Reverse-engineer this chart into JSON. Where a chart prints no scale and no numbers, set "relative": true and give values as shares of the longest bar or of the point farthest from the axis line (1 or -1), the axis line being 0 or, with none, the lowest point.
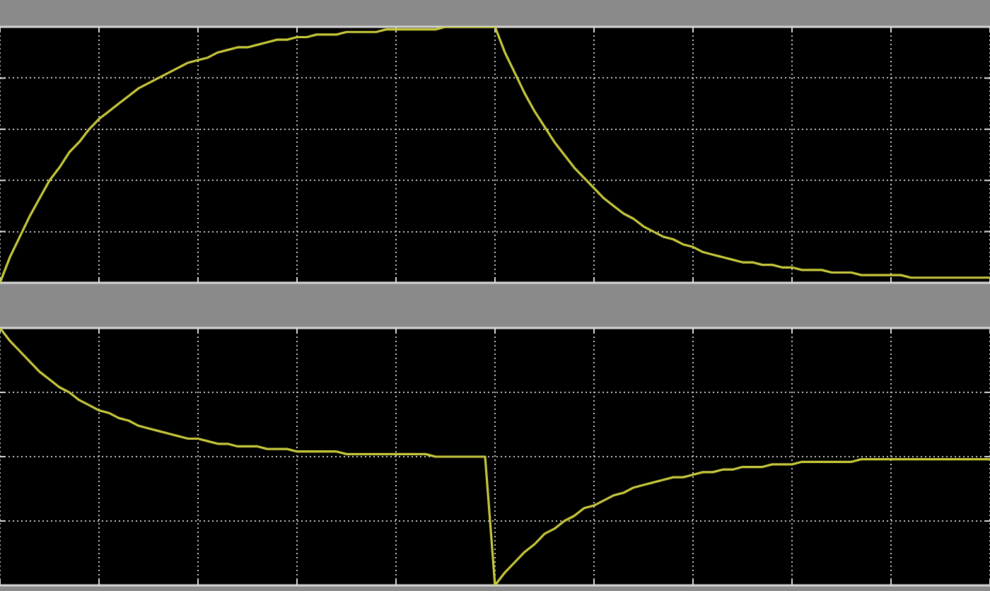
{
  "chart_data": [
    {
      "type": "line",
      "relative": true,
      "tick_labels": false,
      "grid": true,
      "color": "#c8c83c",
      "categories": [
        null,
        null,
        null,
        null,
        null,
        null,
        null,
        null,
        null,
        null,
        null,
        null,
        null,
        null,
        null,
        null,
        null,
        null,
        null,
        null,
        null,
        null,
        null,
        null,
        null,
        null,
        null,
        null,
        null,
        null,
        null,
        null,
        null,
        null,
        null,
        null,
        null,
        null,
        null,
        null,
        null,
        null,
        null,
        null,
        null,
        null,
        null,
        null,
        null,
        null,
        null,
        null,
        null,
        null,
        null,
        null,
        null,
        null,
        null,
        null,
        null,
        null,
        null,
        null,
        null,
        null,
        null,
        null,
        null,
        null,
        null,
        null,
        null,
        null,
        null,
        null,
        null,
        null,
        null,
        null,
        null,
        null,
        null,
        null,
        null,
        null,
        null,
        null,
        null,
        null,
        null,
        null,
        null,
        null,
        null,
        null,
        null,
        null,
        null,
        null,
        null
      ],
      "values": [
        0,
        0.1,
        0.18,
        0.26,
        0.33,
        0.4,
        0.45,
        0.51,
        0.55,
        0.6,
        0.64,
        0.67,
        0.7,
        0.73,
        0.76,
        0.78,
        0.8,
        0.82,
        0.84,
        0.86,
        0.87,
        0.88,
        0.9,
        0.91,
        0.92,
        0.92,
        0.93,
        0.94,
        0.95,
        0.95,
        0.96,
        0.96,
        0.97,
        0.97,
        0.97,
        0.98,
        0.98,
        0.98,
        0.98,
        0.99,
        0.99,
        0.99,
        0.99,
        0.99,
        0.99,
        1.0,
        1.0,
        1.0,
        1.0,
        1.0,
        1,
        0.9,
        0.82,
        0.74,
        0.67,
        0.61,
        0.55,
        0.5,
        0.45,
        0.41,
        0.37,
        0.33,
        0.3,
        0.27,
        0.25,
        0.22,
        0.2,
        0.18,
        0.17,
        0.15,
        0.14,
        0.12,
        0.11,
        0.1,
        0.09,
        0.08,
        0.08,
        0.07,
        0.07,
        0.06,
        0.06,
        0.05,
        0.05,
        0.05,
        0.04,
        0.04,
        0.04,
        0.03,
        0.03,
        0.03,
        0.03,
        0.03,
        0.02,
        0.02,
        0.02,
        0.02,
        0.02,
        0.02,
        0.02,
        0.02,
        0.02
      ]
    },
    {
      "type": "line",
      "relative": true,
      "tick_labels": false,
      "grid": true,
      "color": "#c8c83c",
      "categories": [
        null,
        null,
        null,
        null,
        null,
        null,
        null,
        null,
        null,
        null,
        null,
        null,
        null,
        null,
        null,
        null,
        null,
        null,
        null,
        null,
        null,
        null,
        null,
        null,
        null,
        null,
        null,
        null,
        null,
        null,
        null,
        null,
        null,
        null,
        null,
        null,
        null,
        null,
        null,
        null,
        null,
        null,
        null,
        null,
        null,
        null,
        null,
        null,
        null,
        null,
        null,
        null,
        null,
        null,
        null,
        null,
        null,
        null,
        null,
        null,
        null,
        null,
        null,
        null,
        null,
        null,
        null,
        null,
        null,
        null,
        null,
        null,
        null,
        null,
        null,
        null,
        null,
        null,
        null,
        null,
        null,
        null,
        null,
        null,
        null,
        null,
        null,
        null,
        null,
        null,
        null,
        null,
        null,
        null,
        null,
        null,
        null,
        null,
        null,
        null,
        null
      ],
      "values": [
        1,
        0.95,
        0.91,
        0.87,
        0.83,
        0.8,
        0.77,
        0.75,
        0.72,
        0.7,
        0.68,
        0.67,
        0.65,
        0.64,
        0.62,
        0.61,
        0.6,
        0.59,
        0.58,
        0.57,
        0.57,
        0.56,
        0.55,
        0.55,
        0.54,
        0.54,
        0.54,
        0.53,
        0.53,
        0.53,
        0.52,
        0.52,
        0.52,
        0.52,
        0.52,
        0.51,
        0.51,
        0.51,
        0.51,
        0.51,
        0.51,
        0.51,
        0.51,
        0.51,
        0.5,
        0.5,
        0.5,
        0.5,
        0.5,
        0.5,
        0,
        0.05,
        0.09,
        0.13,
        0.16,
        0.2,
        0.22,
        0.25,
        0.27,
        0.3,
        0.31,
        0.33,
        0.35,
        0.36,
        0.38,
        0.39,
        0.4,
        0.41,
        0.42,
        0.42,
        0.43,
        0.44,
        0.44,
        0.45,
        0.45,
        0.46,
        0.46,
        0.46,
        0.47,
        0.47,
        0.47,
        0.48,
        0.48,
        0.48,
        0.48,
        0.48,
        0.48,
        0.49,
        0.49,
        0.49,
        0.49,
        0.49,
        0.49,
        0.49,
        0.49,
        0.49,
        0.49,
        0.49,
        0.49,
        0.49,
        0.49
      ]
    }
  ]
}
